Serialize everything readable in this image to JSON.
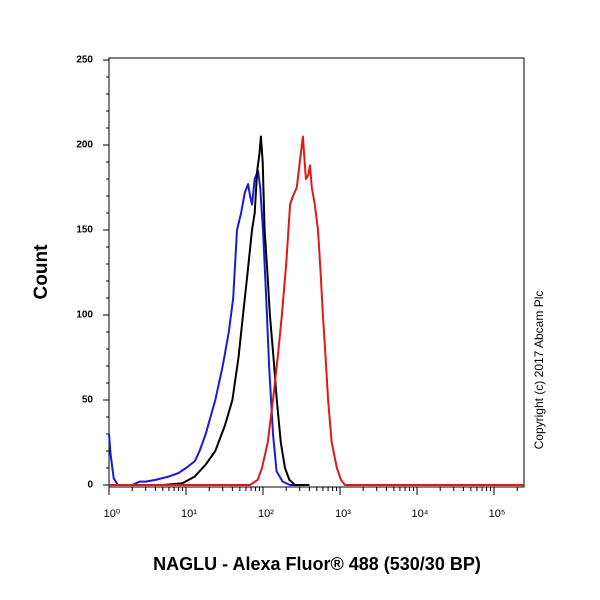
{
  "chart_data": {
    "type": "line",
    "y_label": "Count",
    "x_label": "NAGLU - Alexa Fluor® 488 (530/30 BP)",
    "annotation": "Copyright (c) 2017 Abcam Plc",
    "x_scale": "log",
    "xlim": [
      1,
      245000
    ],
    "ylim": [
      0,
      250
    ],
    "xticks": [
      {
        "value": 1,
        "label": "10⁰"
      },
      {
        "value": 10,
        "label": "10¹"
      },
      {
        "value": 100,
        "label": "10²"
      },
      {
        "value": 1000,
        "label": "10³"
      },
      {
        "value": 10000,
        "label": "10⁴"
      },
      {
        "value": 100000,
        "label": "10⁵"
      }
    ],
    "yticks": [
      0,
      50,
      100,
      150,
      200,
      250
    ],
    "series": [
      {
        "color": "#1a1ad6",
        "x": [
          1,
          1.05,
          1.15,
          1.3,
          2,
          2.5,
          3,
          4,
          6,
          8,
          10,
          13,
          15,
          18,
          24,
          30,
          36,
          41,
          46,
          52,
          58,
          64,
          68,
          72,
          78,
          86,
          92,
          100,
          110,
          120,
          135,
          150,
          180,
          224,
          400
        ],
        "y": [
          30,
          18,
          4,
          0,
          0,
          2,
          2,
          3,
          5,
          7,
          10,
          14,
          20,
          30,
          50,
          70,
          90,
          110,
          150,
          160,
          172,
          177,
          170,
          165,
          180,
          185,
          175,
          150,
          110,
          70,
          30,
          8,
          2,
          0,
          0
        ]
      },
      {
        "color": "#000000",
        "x": [
          1,
          5,
          9,
          13,
          18,
          24,
          32,
          40,
          48,
          55,
          63,
          72,
          78,
          84,
          90,
          94,
          99,
          105,
          114,
          123,
          137,
          151,
          170,
          193,
          220,
          260,
          400
        ],
        "y": [
          0,
          0,
          1,
          5,
          12,
          20,
          35,
          50,
          75,
          100,
          125,
          150,
          160,
          185,
          195,
          205,
          190,
          150,
          125,
          100,
          75,
          50,
          25,
          10,
          3,
          0,
          0
        ]
      },
      {
        "color": "#e01818",
        "x": [
          1,
          40,
          68,
          85,
          97,
          115,
          135,
          155,
          176,
          200,
          225,
          245,
          275,
          300,
          330,
          360,
          385,
          407,
          430,
          470,
          517,
          560,
          600,
          650,
          700,
          780,
          910,
          1030,
          1160,
          10000,
          245000
        ],
        "y": [
          0,
          0,
          0,
          3,
          10,
          25,
          50,
          75,
          100,
          130,
          165,
          170,
          175,
          190,
          205,
          180,
          182,
          188,
          175,
          165,
          150,
          125,
          100,
          75,
          50,
          25,
          10,
          3,
          0,
          0,
          0
        ]
      }
    ]
  }
}
